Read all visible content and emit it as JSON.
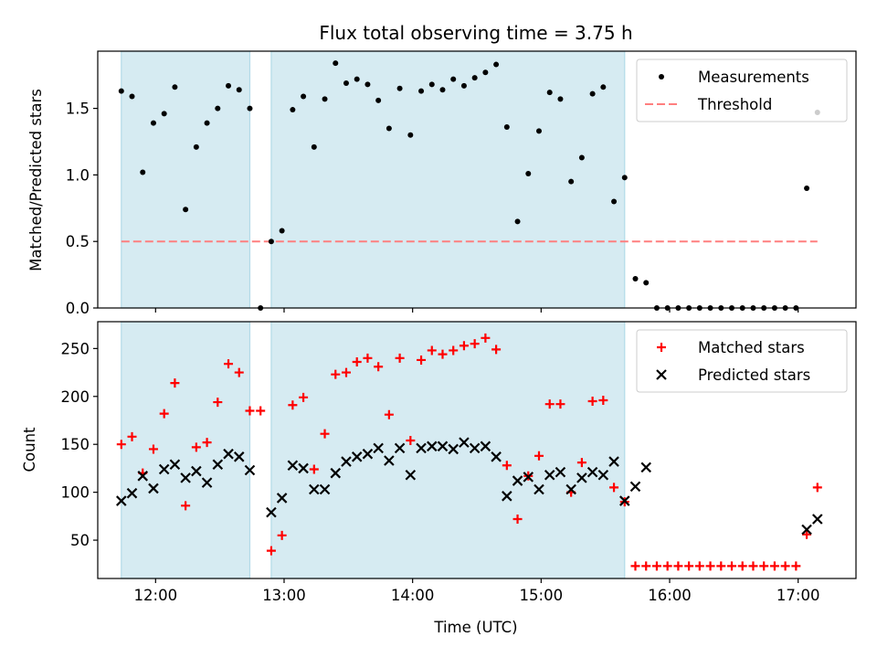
{
  "title": "Flux total observing time = 3.75 h",
  "xlabel": "Time (UTC)",
  "chart_data": [
    {
      "type": "scatter",
      "panel": "top",
      "ylabel": "Matched/Predicted stars",
      "xlim": [
        "11:33",
        "17:27"
      ],
      "ylim": [
        0,
        1.93
      ],
      "yticks": [
        0.0,
        0.5,
        1.0,
        1.5
      ],
      "ytick_labels": [
        "0.0",
        "0.5",
        "1.0",
        "1.5"
      ],
      "legend_position": "top-right",
      "shaded_intervals": [
        [
          "11:44",
          "12:44"
        ],
        [
          "12:54",
          "15:39"
        ]
      ],
      "threshold": {
        "name": "Threshold",
        "y": 0.5,
        "x_range": [
          "11:44",
          "17:09"
        ],
        "color": "#ff7f7f"
      },
      "series": [
        {
          "name": "Measurements",
          "color": "#000000",
          "points": [
            [
              "11:44",
              1.63
            ],
            [
              "11:49",
              1.59
            ],
            [
              "11:54",
              1.02
            ],
            [
              "11:59",
              1.39
            ],
            [
              "12:04",
              1.46
            ],
            [
              "12:09",
              1.66
            ],
            [
              "12:14",
              0.74
            ],
            [
              "12:19",
              1.21
            ],
            [
              "12:24",
              1.39
            ],
            [
              "12:29",
              1.5
            ],
            [
              "12:34",
              1.67
            ],
            [
              "12:39",
              1.64
            ],
            [
              "12:44",
              1.5
            ],
            [
              "12:49",
              0.0
            ],
            [
              "12:54",
              0.5
            ],
            [
              "12:59",
              0.58
            ],
            [
              "13:04",
              1.49
            ],
            [
              "13:09",
              1.59
            ],
            [
              "13:14",
              1.21
            ],
            [
              "13:19",
              1.57
            ],
            [
              "13:24",
              1.84
            ],
            [
              "13:29",
              1.69
            ],
            [
              "13:34",
              1.72
            ],
            [
              "13:39",
              1.68
            ],
            [
              "13:44",
              1.56
            ],
            [
              "13:49",
              1.35
            ],
            [
              "13:54",
              1.65
            ],
            [
              "13:59",
              1.3
            ],
            [
              "14:04",
              1.63
            ],
            [
              "14:09",
              1.68
            ],
            [
              "14:14",
              1.64
            ],
            [
              "14:19",
              1.72
            ],
            [
              "14:24",
              1.67
            ],
            [
              "14:29",
              1.73
            ],
            [
              "14:34",
              1.77
            ],
            [
              "14:39",
              1.83
            ],
            [
              "14:44",
              1.36
            ],
            [
              "14:49",
              0.65
            ],
            [
              "14:54",
              1.01
            ],
            [
              "14:59",
              1.33
            ],
            [
              "15:04",
              1.62
            ],
            [
              "15:09",
              1.57
            ],
            [
              "15:14",
              0.95
            ],
            [
              "15:19",
              1.13
            ],
            [
              "15:24",
              1.61
            ],
            [
              "15:29",
              1.66
            ],
            [
              "15:34",
              0.8
            ],
            [
              "15:39",
              0.98
            ],
            [
              "15:44",
              0.22
            ],
            [
              "15:49",
              0.19
            ],
            [
              "15:54",
              0.0
            ],
            [
              "15:59",
              0.0
            ],
            [
              "16:04",
              0.0
            ],
            [
              "16:09",
              0.0
            ],
            [
              "16:14",
              0.0
            ],
            [
              "16:19",
              0.0
            ],
            [
              "16:24",
              0.0
            ],
            [
              "16:29",
              0.0
            ],
            [
              "16:34",
              0.0
            ],
            [
              "16:39",
              0.0
            ],
            [
              "16:44",
              0.0
            ],
            [
              "16:49",
              0.0
            ],
            [
              "16:54",
              0.0
            ],
            [
              "16:59",
              0.0
            ],
            [
              "17:04",
              0.9
            ],
            [
              "17:09",
              1.47
            ]
          ]
        }
      ]
    },
    {
      "type": "scatter",
      "panel": "bottom",
      "ylabel": "Count",
      "xlabel": "Time (UTC)",
      "xlim": [
        "11:33",
        "17:27"
      ],
      "ylim": [
        10,
        278
      ],
      "yticks": [
        50,
        100,
        150,
        200,
        250
      ],
      "xticks": [
        "12:00",
        "13:00",
        "14:00",
        "15:00",
        "16:00",
        "17:00"
      ],
      "legend_position": "top-right",
      "shaded_intervals": [
        [
          "11:44",
          "12:44"
        ],
        [
          "12:54",
          "15:39"
        ]
      ],
      "series": [
        {
          "name": "Matched stars",
          "marker": "plus",
          "color": "#ff0000",
          "points": [
            [
              "11:44",
              150
            ],
            [
              "11:49",
              158
            ],
            [
              "11:54",
              120
            ],
            [
              "11:59",
              145
            ],
            [
              "12:04",
              182
            ],
            [
              "12:09",
              214
            ],
            [
              "12:14",
              86
            ],
            [
              "12:19",
              147
            ],
            [
              "12:24",
              152
            ],
            [
              "12:29",
              194
            ],
            [
              "12:34",
              234
            ],
            [
              "12:39",
              225
            ],
            [
              "12:44",
              185
            ],
            [
              "12:49",
              185
            ],
            [
              "12:54",
              39
            ],
            [
              "12:59",
              55
            ],
            [
              "13:04",
              191
            ],
            [
              "13:09",
              199
            ],
            [
              "13:14",
              124
            ],
            [
              "13:19",
              161
            ],
            [
              "13:24",
              223
            ],
            [
              "13:29",
              225
            ],
            [
              "13:34",
              236
            ],
            [
              "13:39",
              240
            ],
            [
              "13:44",
              231
            ],
            [
              "13:49",
              181
            ],
            [
              "13:54",
              240
            ],
            [
              "13:59",
              154
            ],
            [
              "14:04",
              238
            ],
            [
              "14:09",
              248
            ],
            [
              "14:14",
              244
            ],
            [
              "14:19",
              248
            ],
            [
              "14:24",
              253
            ],
            [
              "14:29",
              255
            ],
            [
              "14:34",
              261
            ],
            [
              "14:39",
              249
            ],
            [
              "14:44",
              128
            ],
            [
              "14:49",
              72
            ],
            [
              "14:54",
              117
            ],
            [
              "14:59",
              138
            ],
            [
              "15:04",
              192
            ],
            [
              "15:09",
              192
            ],
            [
              "15:14",
              100
            ],
            [
              "15:19",
              131
            ],
            [
              "15:24",
              195
            ],
            [
              "15:29",
              196
            ],
            [
              "15:34",
              105
            ],
            [
              "15:39",
              90
            ],
            [
              "15:44",
              23
            ],
            [
              "15:49",
              23
            ],
            [
              "15:54",
              23
            ],
            [
              "15:59",
              23
            ],
            [
              "16:04",
              23
            ],
            [
              "16:09",
              23
            ],
            [
              "16:14",
              23
            ],
            [
              "16:19",
              23
            ],
            [
              "16:24",
              23
            ],
            [
              "16:29",
              23
            ],
            [
              "16:34",
              23
            ],
            [
              "16:39",
              23
            ],
            [
              "16:44",
              23
            ],
            [
              "16:49",
              23
            ],
            [
              "16:54",
              23
            ],
            [
              "16:59",
              23
            ],
            [
              "17:04",
              56
            ],
            [
              "17:09",
              105
            ]
          ]
        },
        {
          "name": "Predicted stars",
          "marker": "x",
          "color": "#000000",
          "points": [
            [
              "11:44",
              91
            ],
            [
              "11:49",
              99
            ],
            [
              "11:54",
              117
            ],
            [
              "11:59",
              104
            ],
            [
              "12:04",
              124
            ],
            [
              "12:09",
              129
            ],
            [
              "12:14",
              115
            ],
            [
              "12:19",
              122
            ],
            [
              "12:24",
              110
            ],
            [
              "12:29",
              129
            ],
            [
              "12:34",
              140
            ],
            [
              "12:39",
              137
            ],
            [
              "12:44",
              123
            ],
            [
              "12:54",
              79
            ],
            [
              "12:59",
              94
            ],
            [
              "13:04",
              128
            ],
            [
              "13:09",
              125
            ],
            [
              "13:14",
              103
            ],
            [
              "13:19",
              103
            ],
            [
              "13:24",
              120
            ],
            [
              "13:29",
              132
            ],
            [
              "13:34",
              137
            ],
            [
              "13:39",
              140
            ],
            [
              "13:44",
              146
            ],
            [
              "13:49",
              133
            ],
            [
              "13:54",
              146
            ],
            [
              "13:59",
              118
            ],
            [
              "14:04",
              146
            ],
            [
              "14:09",
              148
            ],
            [
              "14:14",
              148
            ],
            [
              "14:19",
              145
            ],
            [
              "14:24",
              152
            ],
            [
              "14:29",
              146
            ],
            [
              "14:34",
              148
            ],
            [
              "14:39",
              137
            ],
            [
              "14:44",
              96
            ],
            [
              "14:49",
              112
            ],
            [
              "14:54",
              116
            ],
            [
              "14:59",
              103
            ],
            [
              "15:04",
              118
            ],
            [
              "15:09",
              121
            ],
            [
              "15:14",
              103
            ],
            [
              "15:19",
              115
            ],
            [
              "15:24",
              121
            ],
            [
              "15:29",
              118
            ],
            [
              "15:34",
              132
            ],
            [
              "15:39",
              91
            ],
            [
              "15:44",
              106
            ],
            [
              "15:49",
              126
            ],
            [
              "17:04",
              61
            ],
            [
              "17:09",
              72
            ]
          ]
        }
      ]
    }
  ]
}
